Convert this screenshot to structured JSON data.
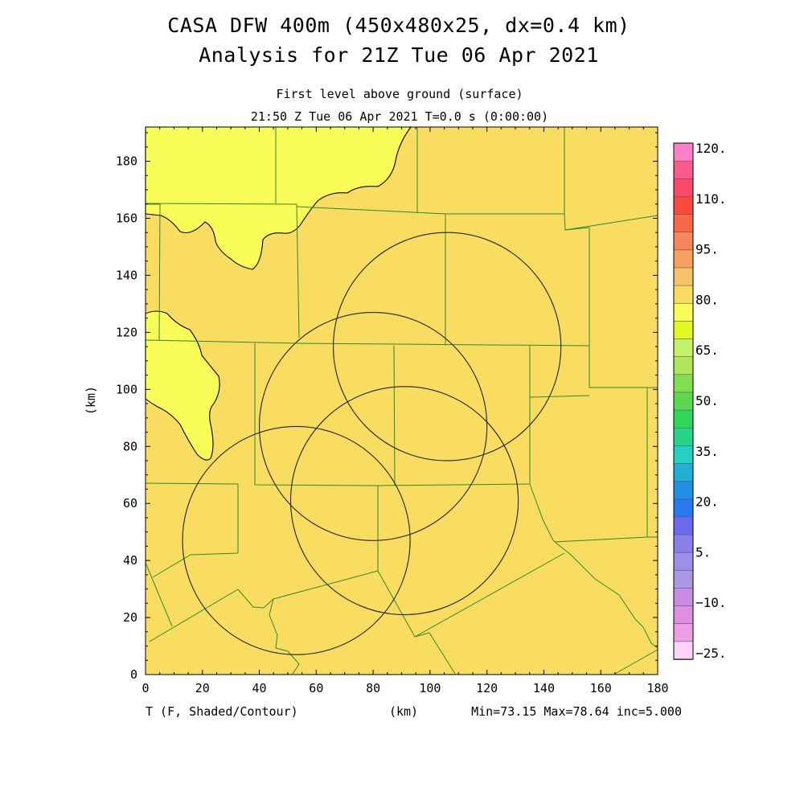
{
  "header": {
    "title_line1": "CASA DFW 400m (450x480x25, dx=0.4 km)",
    "title_line2": "Analysis for 21Z Tue 06 Apr 2021",
    "level": "First level above ground (surface)",
    "time": "21:50 Z Tue 06 Apr 2021   T=0.0 s (0:00:00)"
  },
  "axes": {
    "xlabel": "(km)",
    "ylabel": "(km)",
    "xlim": [
      0,
      180
    ],
    "ylim": [
      0,
      192
    ],
    "xticks": [
      "0",
      "20",
      "40",
      "60",
      "80",
      "100",
      "120",
      "140",
      "160",
      "180"
    ],
    "yticks": [
      "0",
      "20",
      "40",
      "60",
      "80",
      "100",
      "120",
      "140",
      "160",
      "180"
    ]
  },
  "footer": {
    "variable": "T (F, Shaded/Contour)",
    "xunits": "(km)",
    "stats": "Min=73.15 Max=78.64 inc=5.000"
  },
  "field": {
    "background_color": "#f9dd60",
    "warm_region_color": "#fafc58",
    "contour_color": "#000000",
    "county_border_color": "#2e8b2e",
    "radar_ring_color": "#222222"
  },
  "colorbar": {
    "labels": [
      "120.",
      "110.",
      "95.",
      "80.",
      "65.",
      "50.",
      "35.",
      "20.",
      "5.",
      "−10.",
      "−25."
    ],
    "colors": [
      "#ff80c4",
      "#fb5a8c",
      "#fa4a6a",
      "#f94a3c",
      "#f86848",
      "#f8865a",
      "#f8a060",
      "#f6c26a",
      "#f9dd60",
      "#fafc58",
      "#e2f822",
      "#c4f26a",
      "#aee85a",
      "#80e050",
      "#5cd84e",
      "#30d85a",
      "#28d48a",
      "#24d0c0",
      "#20b0d6",
      "#2090e6",
      "#2878f0",
      "#6a6af0",
      "#8a80ec",
      "#9a90ea",
      "#aa9ae6",
      "#c88ee2",
      "#e08ee0",
      "#ec9ee6",
      "#fad4f8"
    ]
  },
  "radars": [
    {
      "cx": 106,
      "cy": 115,
      "r": 40
    },
    {
      "cx": 80,
      "cy": 87,
      "r": 40
    },
    {
      "cx": 53,
      "cy": 47,
      "r": 40
    },
    {
      "cx": 91,
      "cy": 61,
      "r": 40
    }
  ]
}
